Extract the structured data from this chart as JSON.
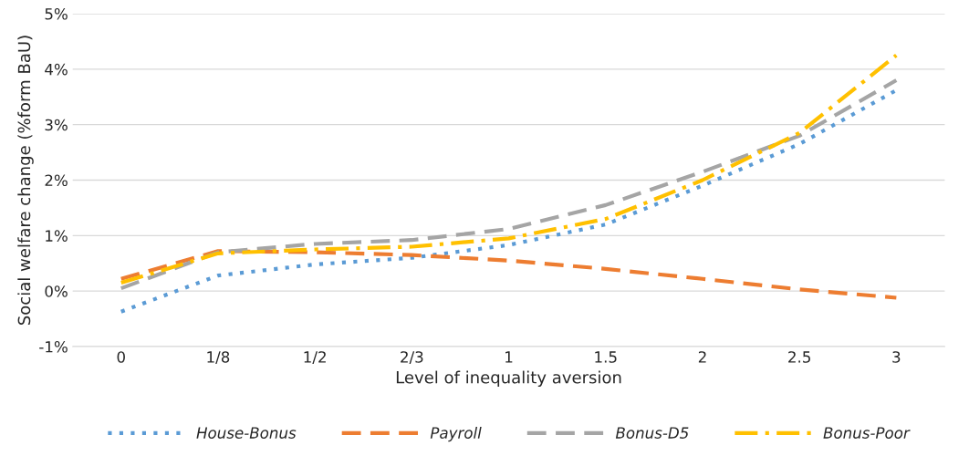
{
  "chart_data": {
    "type": "line",
    "ylabel": "Social welfare change (%form BaU)",
    "xlabel": "Level of inequality aversion",
    "categories": [
      "0",
      "1/8",
      "1/2",
      "2/3",
      "1",
      "1.5",
      "2",
      "2.5",
      "3"
    ],
    "series": [
      {
        "name": "House-Bonus",
        "color": "#5b9bd5",
        "line_style": "dotted",
        "values": [
          -0.37,
          0.28,
          0.48,
          0.6,
          0.83,
          1.2,
          1.9,
          2.65,
          3.62
        ]
      },
      {
        "name": "Payroll",
        "color": "#ed7d31",
        "line_style": "dashed",
        "values": [
          0.22,
          0.72,
          0.7,
          0.65,
          0.55,
          0.4,
          0.22,
          0.03,
          -0.12
        ]
      },
      {
        "name": "Bonus-D5",
        "color": "#a5a5a5",
        "line_style": "dashed",
        "values": [
          0.05,
          0.7,
          0.85,
          0.92,
          1.12,
          1.55,
          2.15,
          2.8,
          3.8
        ]
      },
      {
        "name": "Bonus-Poor",
        "color": "#ffc000",
        "line_style": "dashdot",
        "values": [
          0.15,
          0.68,
          0.75,
          0.8,
          0.95,
          1.3,
          2.0,
          2.85,
          4.25
        ]
      }
    ],
    "ylim": [
      -1,
      5
    ],
    "yticks": [
      {
        "value": -1,
        "label": "-1%"
      },
      {
        "value": 0,
        "label": "0%"
      },
      {
        "value": 1,
        "label": "1%"
      },
      {
        "value": 2,
        "label": "2%"
      },
      {
        "value": 3,
        "label": "3%"
      },
      {
        "value": 4,
        "label": "4%"
      },
      {
        "value": 5,
        "label": "5%"
      }
    ],
    "grid": "y",
    "legend": "bottom",
    "marker": "none"
  }
}
